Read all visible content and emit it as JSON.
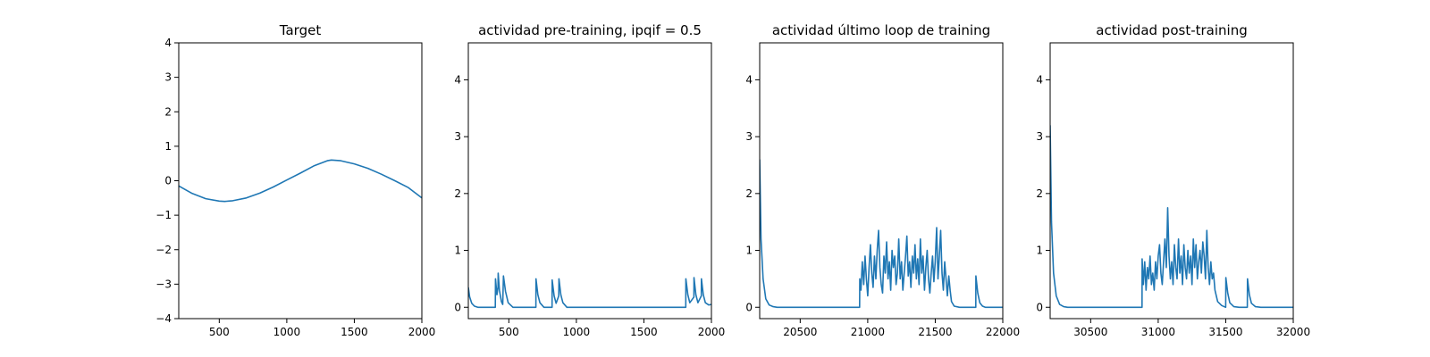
{
  "chart_data": [
    {
      "type": "line",
      "title": "Target",
      "xlim": [
        200,
        2000
      ],
      "ylim": [
        -4,
        4
      ],
      "xticks": [
        500,
        1000,
        1500,
        2000
      ],
      "yticks": [
        -4,
        -3,
        -2,
        -1,
        0,
        1,
        2,
        3,
        4
      ],
      "ytick_labels": [
        "−4",
        "−3",
        "−2",
        "−1",
        "0",
        "1",
        "2",
        "3",
        "4"
      ],
      "color": "#1f77b4",
      "series": [
        {
          "x": [
            200,
            300,
            400,
            500,
            540,
            600,
            700,
            800,
            900,
            1000,
            1100,
            1200,
            1300,
            1330,
            1400,
            1500,
            1600,
            1700,
            1800,
            1900,
            2000
          ],
          "y": [
            -0.15,
            -0.37,
            -0.52,
            -0.59,
            -0.6,
            -0.58,
            -0.5,
            -0.36,
            -0.18,
            0.02,
            0.22,
            0.43,
            0.58,
            0.6,
            0.58,
            0.49,
            0.36,
            0.19,
            0.0,
            -0.2,
            -0.5
          ]
        }
      ]
    },
    {
      "type": "line",
      "title": "actividad pre-training, ipqif = 0.5",
      "xlim": [
        200,
        2000
      ],
      "ylim": [
        -0.2,
        4.65
      ],
      "xticks": [
        500,
        1000,
        1500,
        2000
      ],
      "yticks": [
        0,
        1,
        2,
        3,
        4
      ],
      "ytick_labels": [
        "0",
        "1",
        "2",
        "3",
        "4"
      ],
      "color": "#1f77b4",
      "series": [
        {
          "x": [
            200,
            210,
            225,
            245,
            270,
            400,
            401,
            412,
            420,
            421,
            430,
            445,
            455,
            460,
            475,
            495,
            530,
            700,
            701,
            715,
            730,
            760,
            820,
            821,
            835,
            850,
            870,
            871,
            885,
            900,
            930,
            1810,
            1811,
            1825,
            1840,
            1870,
            1871,
            1885,
            1900,
            1925,
            1926,
            1940,
            1955,
            1980,
            2000
          ],
          "y": [
            0.35,
            0.18,
            0.07,
            0.02,
            0.0,
            0.0,
            0.5,
            0.22,
            0.35,
            0.6,
            0.3,
            0.1,
            0.05,
            0.55,
            0.28,
            0.08,
            0.0,
            0.0,
            0.5,
            0.22,
            0.08,
            0.0,
            0.0,
            0.48,
            0.2,
            0.07,
            0.2,
            0.5,
            0.22,
            0.08,
            0.0,
            0.0,
            0.5,
            0.22,
            0.08,
            0.18,
            0.52,
            0.22,
            0.08,
            0.2,
            0.5,
            0.22,
            0.08,
            0.04,
            0.05
          ]
        }
      ]
    },
    {
      "type": "line",
      "title": "actividad último loop de training",
      "xlim": [
        20200,
        22000
      ],
      "ylim": [
        -0.2,
        4.65
      ],
      "xticks": [
        20500,
        21000,
        21500,
        22000
      ],
      "yticks": [
        0,
        1,
        2,
        3,
        4
      ],
      "ytick_labels": [
        "0",
        "1",
        "2",
        "3",
        "4"
      ],
      "color": "#1f77b4",
      "series": [
        {
          "x": [
            20200,
            20210,
            20225,
            20245,
            20270,
            20300,
            20330,
            20940,
            20941,
            20950,
            20960,
            20970,
            20980,
            20990,
            21000,
            21010,
            21020,
            21030,
            21040,
            21050,
            21060,
            21070,
            21080,
            21090,
            21100,
            21110,
            21120,
            21130,
            21140,
            21150,
            21160,
            21170,
            21180,
            21190,
            21200,
            21210,
            21220,
            21230,
            21240,
            21250,
            21260,
            21270,
            21280,
            21290,
            21300,
            21310,
            21320,
            21330,
            21340,
            21350,
            21360,
            21370,
            21380,
            21390,
            21400,
            21410,
            21420,
            21430,
            21440,
            21450,
            21460,
            21470,
            21480,
            21490,
            21500,
            21510,
            21520,
            21530,
            21540,
            21550,
            21560,
            21570,
            21580,
            21590,
            21600,
            21610,
            21620,
            21640,
            21680,
            21800,
            21801,
            21815,
            21830,
            21850,
            21870,
            22000
          ],
          "y": [
            2.6,
            1.2,
            0.5,
            0.15,
            0.04,
            0.01,
            0.0,
            0.0,
            0.5,
            0.3,
            0.8,
            0.4,
            0.9,
            0.5,
            0.2,
            0.7,
            1.1,
            0.6,
            0.35,
            0.9,
            0.5,
            1.0,
            1.35,
            0.7,
            0.4,
            0.25,
            0.9,
            0.6,
            1.15,
            0.5,
            0.8,
            0.3,
            1.0,
            0.7,
            0.9,
            0.4,
            0.6,
            1.2,
            0.5,
            0.8,
            0.3,
            0.6,
            0.9,
            1.25,
            0.55,
            0.8,
            0.35,
            0.9,
            0.6,
            1.1,
            0.5,
            0.85,
            0.4,
            1.2,
            0.6,
            0.9,
            0.3,
            0.7,
            1.0,
            0.5,
            0.25,
            0.6,
            0.9,
            0.45,
            0.8,
            1.4,
            0.5,
            0.9,
            1.35,
            0.6,
            0.3,
            0.8,
            0.5,
            0.2,
            0.55,
            0.3,
            0.1,
            0.02,
            0.0,
            0.0,
            0.55,
            0.25,
            0.08,
            0.02,
            0.0,
            0.0
          ]
        }
      ]
    },
    {
      "type": "line",
      "title": "actividad post-training",
      "xlim": [
        30200,
        32000
      ],
      "ylim": [
        -0.2,
        4.65
      ],
      "xticks": [
        30500,
        31000,
        31500,
        32000
      ],
      "yticks": [
        0,
        1,
        2,
        3,
        4
      ],
      "ytick_labels": [
        "0",
        "1",
        "2",
        "3",
        "4"
      ],
      "color": "#1f77b4",
      "series": [
        {
          "x": [
            30200,
            30210,
            30225,
            30245,
            30270,
            30300,
            30330,
            30880,
            30881,
            30890,
            30900,
            30910,
            30920,
            30930,
            30940,
            30950,
            30960,
            30970,
            30980,
            30990,
            31000,
            31010,
            31020,
            31030,
            31040,
            31050,
            31060,
            31070,
            31080,
            31090,
            31100,
            31110,
            31120,
            31130,
            31140,
            31150,
            31160,
            31170,
            31180,
            31190,
            31200,
            31210,
            31220,
            31230,
            31240,
            31250,
            31260,
            31270,
            31280,
            31290,
            31300,
            31310,
            31320,
            31330,
            31340,
            31350,
            31360,
            31370,
            31380,
            31390,
            31400,
            31410,
            31420,
            31440,
            31470,
            31500,
            31501,
            31515,
            31530,
            31560,
            31600,
            31660,
            31661,
            31675,
            31690,
            31720,
            31760,
            32000
          ],
          "y": [
            3.2,
            1.5,
            0.6,
            0.2,
            0.05,
            0.01,
            0.0,
            0.0,
            0.85,
            0.4,
            0.8,
            0.3,
            0.7,
            0.5,
            0.9,
            0.4,
            0.6,
            0.3,
            0.8,
            0.5,
            0.9,
            1.1,
            0.6,
            0.4,
            0.8,
            1.2,
            0.7,
            1.75,
            0.9,
            0.5,
            0.8,
            0.4,
            1.1,
            0.7,
            0.5,
            1.2,
            0.6,
            0.9,
            0.4,
            1.1,
            0.7,
            0.5,
            1.0,
            0.6,
            0.9,
            0.4,
            1.2,
            0.7,
            1.1,
            0.5,
            0.8,
            1.0,
            0.6,
            1.15,
            0.9,
            0.5,
            1.35,
            0.7,
            0.4,
            0.8,
            0.5,
            0.6,
            0.3,
            0.1,
            0.03,
            0.0,
            0.52,
            0.25,
            0.08,
            0.01,
            0.0,
            0.0,
            0.5,
            0.22,
            0.07,
            0.01,
            0.0,
            0.0
          ]
        }
      ]
    }
  ]
}
